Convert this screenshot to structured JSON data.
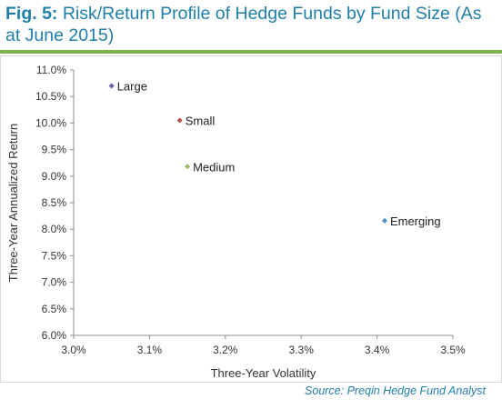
{
  "figure": {
    "number": "Fig. 5:",
    "title": "Risk/Return Profile of Hedge Funds by Fund Size (As at June 2015)",
    "source": "Source: Preqin Hedge Fund Analyst"
  },
  "colors": {
    "title": "#1f7fa8",
    "rule": "#7ab648"
  },
  "chart_data": {
    "type": "scatter",
    "xlabel": "Three-Year Volatility",
    "ylabel": "Three-Year Annualized Return",
    "xlim": [
      3.0,
      3.5
    ],
    "ylim": [
      6.0,
      11.0
    ],
    "x_ticks": [
      "3.0%",
      "3.1%",
      "3.2%",
      "3.3%",
      "3.4%",
      "3.5%"
    ],
    "y_ticks": [
      "6.0%",
      "6.5%",
      "7.0%",
      "7.5%",
      "8.0%",
      "8.5%",
      "9.0%",
      "9.5%",
      "10.0%",
      "10.5%",
      "11.0%"
    ],
    "grid": false,
    "points": [
      {
        "label": "Large",
        "x": 3.05,
        "y": 10.7,
        "color": "#6e5aa8"
      },
      {
        "label": "Small",
        "x": 3.14,
        "y": 10.05,
        "color": "#c0504d"
      },
      {
        "label": "Medium",
        "x": 3.15,
        "y": 9.18,
        "color": "#9bbb59"
      },
      {
        "label": "Emerging",
        "x": 3.41,
        "y": 8.16,
        "color": "#4a8fc4"
      }
    ]
  }
}
